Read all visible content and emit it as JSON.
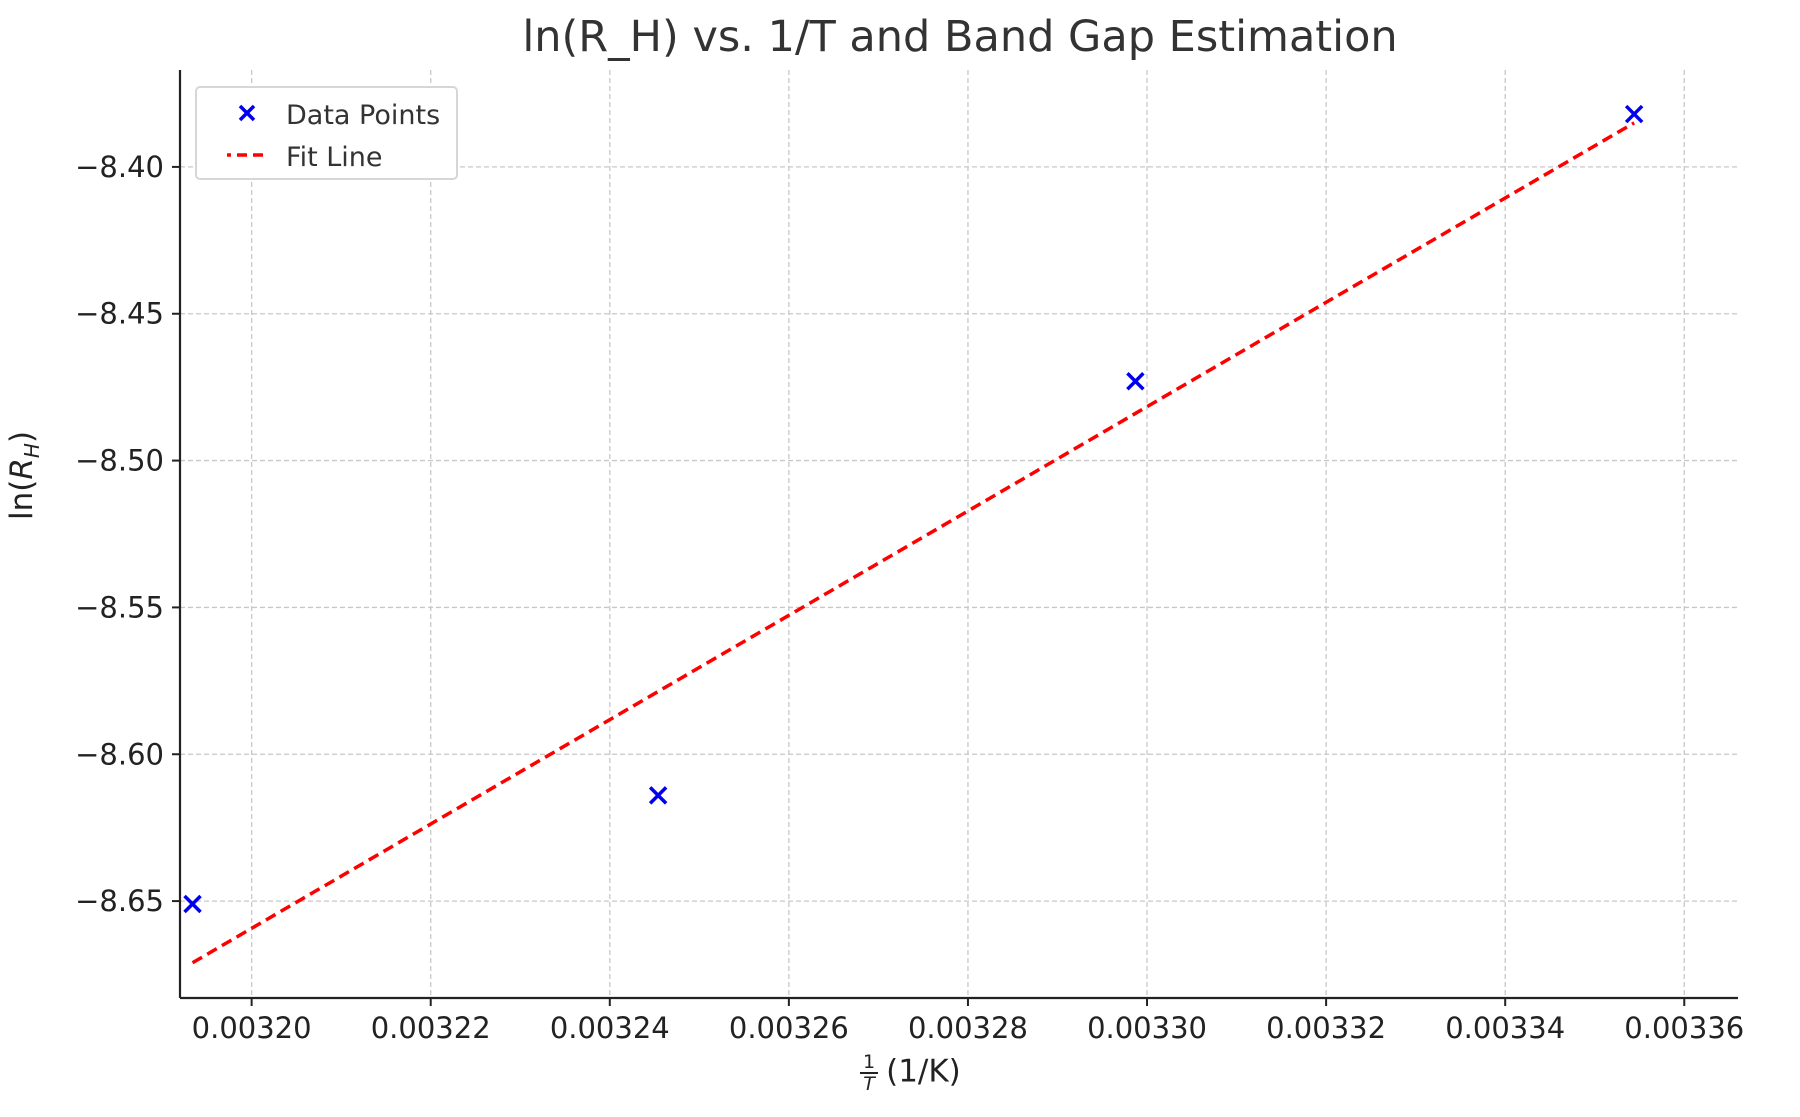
{
  "chart_data": {
    "type": "scatter",
    "title": "ln(R_H) vs. 1/T and Band Gap Estimation",
    "xlabel_num": "1",
    "xlabel_den": "T",
    "xlabel_unit": "(1/K)",
    "ylabel_main": "ln(",
    "ylabel_var": "R",
    "ylabel_sub": "H",
    "ylabel_close": ")",
    "xlim": [
      0.003192,
      0.003366
    ],
    "ylim": [
      -8.683,
      -8.367
    ],
    "x_ticks": [
      0.0032,
      0.00322,
      0.00324,
      0.00326,
      0.00328,
      0.0033,
      0.00332,
      0.00334,
      0.00336
    ],
    "x_tick_labels": [
      "0.00320",
      "0.00322",
      "0.00324",
      "0.00326",
      "0.00328",
      "0.00330",
      "0.00332",
      "0.00334",
      "0.00336"
    ],
    "y_ticks": [
      -8.65,
      -8.6,
      -8.55,
      -8.5,
      -8.45,
      -8.4
    ],
    "y_tick_labels": [
      "−8.65",
      "−8.60",
      "−8.55",
      "−8.50",
      "−8.45",
      "−8.40"
    ],
    "grid": true,
    "legend_position": "top-left",
    "series": [
      {
        "name": "Data Points",
        "kind": "scatter",
        "marker": "x",
        "color": "#0000ee",
        "x": [
          0.0031934,
          0.0032454,
          0.0032987,
          0.0033544
        ],
        "y": [
          -8.651,
          -8.614,
          -8.473,
          -8.382
        ]
      },
      {
        "name": "Fit Line",
        "kind": "line",
        "style": "dashed",
        "color": "#ff0000",
        "x": [
          0.0031934,
          0.0033544
        ],
        "y": [
          -8.671,
          -8.385
        ]
      }
    ]
  }
}
